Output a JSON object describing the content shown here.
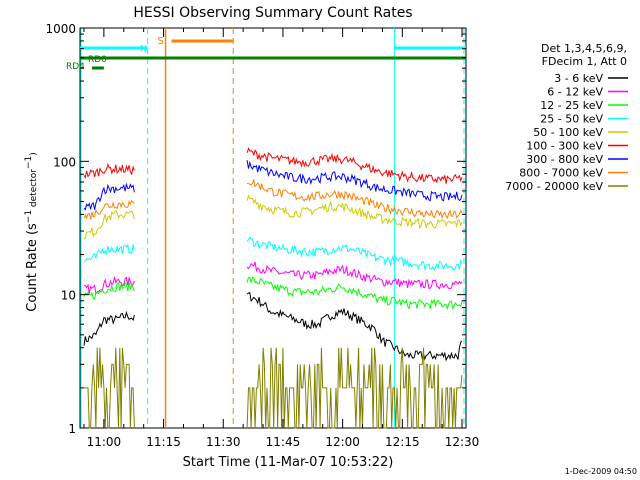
{
  "chart_data": {
    "type": "line",
    "title": "HESSI Observing Summary Count Rates",
    "xlabel": "Start Time (11-Mar-07 10:53:22)",
    "ylabel": "Count Rate (s⁻¹ detector⁻¹)",
    "ylabel_parts": {
      "main": "Count Rate (s",
      "sup1": "−1",
      "mid": " detector",
      "sup2": "−1",
      "end": ")"
    },
    "yscale": "log",
    "ylim": [
      1,
      1000
    ],
    "xlim_minutes": [
      -6,
      91
    ],
    "x_ticks": [
      {
        "m": 0,
        "label": "11:00"
      },
      {
        "m": 15,
        "label": "11:15"
      },
      {
        "m": 30,
        "label": "11:30"
      },
      {
        "m": 45,
        "label": "11:45"
      },
      {
        "m": 60,
        "label": "12:00"
      },
      {
        "m": 75,
        "label": "12:15"
      },
      {
        "m": 90,
        "label": "12:30"
      }
    ],
    "y_ticks": [
      {
        "v": 1,
        "label": "1"
      },
      {
        "v": 10,
        "label": "10"
      },
      {
        "v": 100,
        "label": "100"
      },
      {
        "v": 1000,
        "label": "1000"
      }
    ],
    "legend": {
      "header": [
        "Det 1,3,4,5,6,9,",
        "FDecim 1, Att 0"
      ],
      "placement": "right"
    },
    "series": [
      {
        "name": "3 - 6 keV",
        "color": "#000000",
        "values": [
          4.5,
          5,
          6.5,
          6.5,
          7,
          6.5,
          null,
          null,
          null,
          null,
          null,
          10,
          9,
          7.5,
          7,
          6.5,
          6,
          6,
          7,
          7.5,
          7,
          6.5,
          6,
          5.5,
          4.5,
          4,
          3.5,
          3.5,
          3.5,
          3.5,
          3.5,
          3.5,
          4.5
        ]
      },
      {
        "name": "6 - 12 keV",
        "color": "#ff00ff",
        "values": [
          11,
          11,
          12,
          12.5,
          12.5,
          12.5,
          null,
          null,
          null,
          null,
          null,
          17,
          16,
          15,
          14.5,
          14,
          14,
          14,
          15,
          15.5,
          15,
          14,
          13.5,
          13,
          12.5,
          12.5,
          12,
          12,
          12,
          12,
          12,
          12,
          12.5
        ]
      },
      {
        "name": "12 - 25 keV",
        "color": "#00ff00",
        "values": [
          9.5,
          10,
          11,
          11.5,
          11.5,
          11.5,
          null,
          null,
          null,
          null,
          null,
          13,
          12.5,
          11.5,
          11,
          10.5,
          10.5,
          10.5,
          11,
          11.5,
          11,
          10.5,
          10,
          9.5,
          9,
          9,
          8.5,
          8.5,
          8.5,
          8.5,
          8.5,
          8.5,
          9
        ]
      },
      {
        "name": "25 - 50 keV",
        "color": "#00ffff",
        "values": [
          18,
          19,
          22,
          22,
          22,
          22,
          null,
          null,
          null,
          null,
          null,
          26,
          24,
          23,
          22,
          21.5,
          21,
          21,
          22,
          22.5,
          22,
          21,
          20,
          19,
          18.5,
          18,
          17.5,
          17,
          16.5,
          16.5,
          16.5,
          16.5,
          17
        ]
      },
      {
        "name": "50 - 100 keV",
        "color": "#cccc00",
        "values": [
          28,
          30,
          37,
          40,
          40,
          40,
          null,
          null,
          null,
          null,
          null,
          52,
          48,
          44,
          42,
          41,
          42,
          44,
          46,
          46,
          44,
          42,
          40,
          38,
          37,
          36,
          35,
          34.5,
          34,
          34,
          34,
          34.5,
          35
        ]
      },
      {
        "name": "100 - 300 keV",
        "color": "#ff0000",
        "values": [
          80,
          82,
          88,
          88,
          87,
          86,
          null,
          null,
          null,
          null,
          null,
          118,
          112,
          106,
          103,
          100,
          99,
          102,
          104,
          104,
          100,
          95,
          91,
          86,
          83,
          80,
          77,
          75,
          74,
          73,
          73,
          74,
          76
        ]
      },
      {
        "name": "300 - 800 keV",
        "color": "#0000ff",
        "values": [
          44,
          47,
          62,
          63,
          63,
          62,
          null,
          null,
          null,
          null,
          null,
          95,
          88,
          82,
          78,
          75,
          74,
          75,
          77,
          77,
          74,
          71,
          68,
          64,
          62,
          60,
          58,
          56,
          55,
          54,
          54,
          55,
          56
        ]
      },
      {
        "name": "800 - 7000 keV",
        "color": "#ff8000",
        "values": [
          38,
          41,
          46,
          48,
          48,
          47,
          null,
          null,
          null,
          null,
          null,
          72,
          66,
          60,
          57,
          55,
          54,
          55,
          57,
          57,
          55,
          52,
          50,
          47,
          45,
          44,
          42,
          41,
          40,
          39.5,
          39.5,
          40,
          41
        ]
      },
      {
        "name": "7000 - 20000 keV",
        "color": "#808000",
        "values": [
          1.5,
          2,
          2.5,
          3.5,
          3,
          2,
          null,
          null,
          null,
          null,
          null,
          1.5,
          2,
          2.5,
          2,
          2,
          2.5,
          3,
          3,
          2.5,
          2,
          2,
          1.5,
          1.5,
          2,
          2.5,
          2.5,
          2,
          2,
          1.5,
          1.5,
          2,
          2.5
        ]
      }
    ],
    "x_minutes": [
      -5,
      -2,
      0,
      3,
      6,
      8,
      12,
      18,
      24,
      30,
      33,
      36,
      39,
      42,
      45,
      48,
      51,
      54,
      57,
      60,
      62,
      64,
      66,
      68,
      70,
      73,
      76,
      79,
      82,
      85,
      87,
      89,
      90
    ],
    "flags": {
      "N_label": "N",
      "S_label": "S",
      "RD0_label": "RD0",
      "RD4_label": "RD4",
      "night_color": "#00ffff",
      "saa_color": "#ff8000",
      "decim_color": "#007f00",
      "night_intervals": [
        [
          -6,
          11
        ],
        [
          73,
          91
        ]
      ],
      "saa_interval": [
        15.5,
        32.5
      ],
      "night_starts_solid": [
        -6,
        73
      ],
      "night_ends_dashed": [
        11,
        91
      ],
      "saa_start_solid": 15.5,
      "saa_end_dashed": 32.5,
      "rd0_interval": [
        -6,
        91
      ],
      "rd4_interval": [
        -3,
        0
      ]
    },
    "footer_date": "1-Dec-2009 04:50",
    "grid": false
  }
}
